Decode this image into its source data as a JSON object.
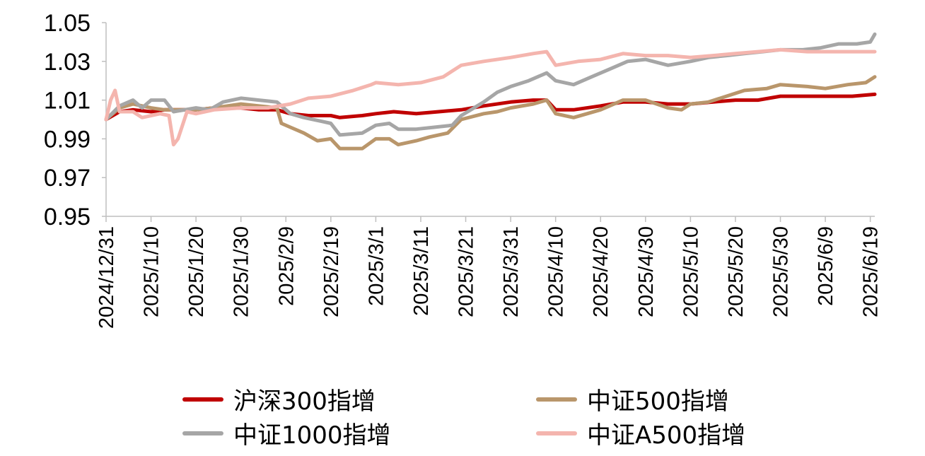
{
  "chart_data": {
    "type": "line",
    "ylim": [
      0.95,
      1.05
    ],
    "yticks": [
      "1.05",
      "1.03",
      "1.01",
      "0.99",
      "0.97",
      "0.95"
    ],
    "ytick_values": [
      1.05,
      1.03,
      1.01,
      0.99,
      0.97,
      0.95
    ],
    "xticks": [
      "2024/12/31",
      "2025/1/10",
      "2025/1/20",
      "2025/1/30",
      "2025/2/9",
      "2025/2/19",
      "2025/3/1",
      "2025/3/11",
      "2025/3/21",
      "2025/3/31",
      "2025/4/10",
      "2025/4/20",
      "2025/4/30",
      "2025/5/10",
      "2025/5/20",
      "2025/5/30",
      "2025/6/9",
      "2025/6/19"
    ],
    "xlim": [
      "2024/12/31",
      "2025/6/20"
    ],
    "grid": false,
    "legend_placement": "bottom",
    "series": [
      {
        "name": "沪深300指增",
        "color": "#C00000",
        "points": [
          [
            "2024/12/31",
            1.0
          ],
          [
            "2025/1/3",
            1.004
          ],
          [
            "2025/1/6",
            1.005
          ],
          [
            "2025/1/10",
            1.004
          ],
          [
            "2025/1/13",
            1.005
          ],
          [
            "2025/1/20",
            1.005
          ],
          [
            "2025/1/24",
            1.006
          ],
          [
            "2025/1/30",
            1.006
          ],
          [
            "2025/2/3",
            1.005
          ],
          [
            "2025/2/7",
            1.005
          ],
          [
            "2025/2/10",
            1.003
          ],
          [
            "2025/2/14",
            1.002
          ],
          [
            "2025/2/19",
            1.002
          ],
          [
            "2025/2/21",
            1.001
          ],
          [
            "2025/2/26",
            1.002
          ],
          [
            "2025/3/1",
            1.003
          ],
          [
            "2025/3/5",
            1.004
          ],
          [
            "2025/3/10",
            1.003
          ],
          [
            "2025/3/15",
            1.004
          ],
          [
            "2025/3/20",
            1.005
          ],
          [
            "2025/3/25",
            1.007
          ],
          [
            "2025/3/31",
            1.009
          ],
          [
            "2025/4/5",
            1.01
          ],
          [
            "2025/4/8",
            1.01
          ],
          [
            "2025/4/10",
            1.005
          ],
          [
            "2025/4/14",
            1.005
          ],
          [
            "2025/4/20",
            1.007
          ],
          [
            "2025/4/25",
            1.009
          ],
          [
            "2025/4/30",
            1.009
          ],
          [
            "2025/5/5",
            1.008
          ],
          [
            "2025/5/10",
            1.008
          ],
          [
            "2025/5/15",
            1.009
          ],
          [
            "2025/5/20",
            1.01
          ],
          [
            "2025/5/25",
            1.01
          ],
          [
            "2025/5/30",
            1.012
          ],
          [
            "2025/6/5",
            1.012
          ],
          [
            "2025/6/10",
            1.012
          ],
          [
            "2025/6/15",
            1.012
          ],
          [
            "2025/6/20",
            1.013
          ]
        ]
      },
      {
        "name": "中证500指增",
        "color": "#B9966B",
        "points": [
          [
            "2024/12/31",
            1.0
          ],
          [
            "2025/1/3",
            1.006
          ],
          [
            "2025/1/6",
            1.008
          ],
          [
            "2025/1/10",
            1.006
          ],
          [
            "2025/1/13",
            1.005
          ],
          [
            "2025/1/20",
            1.005
          ],
          [
            "2025/1/24",
            1.006
          ],
          [
            "2025/1/30",
            1.008
          ],
          [
            "2025/2/3",
            1.007
          ],
          [
            "2025/2/7",
            1.006
          ],
          [
            "2025/2/8",
            0.998
          ],
          [
            "2025/2/10",
            0.996
          ],
          [
            "2025/2/13",
            0.993
          ],
          [
            "2025/2/16",
            0.989
          ],
          [
            "2025/2/19",
            0.99
          ],
          [
            "2025/2/21",
            0.985
          ],
          [
            "2025/2/26",
            0.985
          ],
          [
            "2025/3/1",
            0.99
          ],
          [
            "2025/3/4",
            0.99
          ],
          [
            "2025/3/6",
            0.987
          ],
          [
            "2025/3/10",
            0.989
          ],
          [
            "2025/3/13",
            0.991
          ],
          [
            "2025/3/17",
            0.993
          ],
          [
            "2025/3/20",
            1.0
          ],
          [
            "2025/3/25",
            1.003
          ],
          [
            "2025/3/28",
            1.004
          ],
          [
            "2025/3/31",
            1.006
          ],
          [
            "2025/4/5",
            1.008
          ],
          [
            "2025/4/8",
            1.01
          ],
          [
            "2025/4/10",
            1.003
          ],
          [
            "2025/4/14",
            1.001
          ],
          [
            "2025/4/20",
            1.005
          ],
          [
            "2025/4/25",
            1.01
          ],
          [
            "2025/4/30",
            1.01
          ],
          [
            "2025/5/5",
            1.006
          ],
          [
            "2025/5/8",
            1.005
          ],
          [
            "2025/5/10",
            1.008
          ],
          [
            "2025/5/14",
            1.009
          ],
          [
            "2025/5/18",
            1.012
          ],
          [
            "2025/5/22",
            1.015
          ],
          [
            "2025/5/27",
            1.016
          ],
          [
            "2025/5/30",
            1.018
          ],
          [
            "2025/6/5",
            1.017
          ],
          [
            "2025/6/9",
            1.016
          ],
          [
            "2025/6/14",
            1.018
          ],
          [
            "2025/6/18",
            1.019
          ],
          [
            "2025/6/20",
            1.022
          ]
        ]
      },
      {
        "name": "中证1000指增",
        "color": "#A6A6A6",
        "points": [
          [
            "2024/12/31",
            1.0
          ],
          [
            "2025/1/3",
            1.007
          ],
          [
            "2025/1/6",
            1.01
          ],
          [
            "2025/1/8",
            1.006
          ],
          [
            "2025/1/10",
            1.01
          ],
          [
            "2025/1/13",
            1.01
          ],
          [
            "2025/1/15",
            1.004
          ],
          [
            "2025/1/20",
            1.006
          ],
          [
            "2025/1/23",
            1.005
          ],
          [
            "2025/1/26",
            1.009
          ],
          [
            "2025/1/30",
            1.011
          ],
          [
            "2025/2/3",
            1.01
          ],
          [
            "2025/2/7",
            1.009
          ],
          [
            "2025/2/10",
            1.003
          ],
          [
            "2025/2/13",
            1.001
          ],
          [
            "2025/2/17",
            0.999
          ],
          [
            "2025/2/19",
            0.998
          ],
          [
            "2025/2/21",
            0.992
          ],
          [
            "2025/2/26",
            0.993
          ],
          [
            "2025/3/1",
            0.997
          ],
          [
            "2025/3/4",
            0.998
          ],
          [
            "2025/3/6",
            0.995
          ],
          [
            "2025/3/10",
            0.995
          ],
          [
            "2025/3/14",
            0.996
          ],
          [
            "2025/3/18",
            0.997
          ],
          [
            "2025/3/20",
            1.002
          ],
          [
            "2025/3/25",
            1.009
          ],
          [
            "2025/3/28",
            1.014
          ],
          [
            "2025/3/31",
            1.017
          ],
          [
            "2025/4/4",
            1.02
          ],
          [
            "2025/4/8",
            1.024
          ],
          [
            "2025/4/10",
            1.02
          ],
          [
            "2025/4/14",
            1.018
          ],
          [
            "2025/4/18",
            1.022
          ],
          [
            "2025/4/22",
            1.026
          ],
          [
            "2025/4/26",
            1.03
          ],
          [
            "2025/4/30",
            1.031
          ],
          [
            "2025/5/5",
            1.028
          ],
          [
            "2025/5/10",
            1.03
          ],
          [
            "2025/5/14",
            1.032
          ],
          [
            "2025/5/18",
            1.033
          ],
          [
            "2025/5/22",
            1.034
          ],
          [
            "2025/5/26",
            1.035
          ],
          [
            "2025/5/30",
            1.036
          ],
          [
            "2025/6/4",
            1.036
          ],
          [
            "2025/6/8",
            1.037
          ],
          [
            "2025/6/12",
            1.039
          ],
          [
            "2025/6/16",
            1.039
          ],
          [
            "2025/6/19",
            1.04
          ],
          [
            "2025/6/20",
            1.044
          ]
        ]
      },
      {
        "name": "中证A500指增",
        "color": "#F4B5AE",
        "points": [
          [
            "2024/12/31",
            1.0
          ],
          [
            "2025/1/1",
            1.01
          ],
          [
            "2025/1/2",
            1.015
          ],
          [
            "2025/1/3",
            1.004
          ],
          [
            "2025/1/6",
            1.004
          ],
          [
            "2025/1/8",
            1.001
          ],
          [
            "2025/1/12",
            1.003
          ],
          [
            "2025/1/14",
            1.002
          ],
          [
            "2025/1/15",
            0.987
          ],
          [
            "2025/1/16",
            0.99
          ],
          [
            "2025/1/18",
            1.004
          ],
          [
            "2025/1/20",
            1.003
          ],
          [
            "2025/1/24",
            1.005
          ],
          [
            "2025/1/30",
            1.006
          ],
          [
            "2025/2/5",
            1.006
          ],
          [
            "2025/2/10",
            1.008
          ],
          [
            "2025/2/14",
            1.011
          ],
          [
            "2025/2/19",
            1.012
          ],
          [
            "2025/2/24",
            1.015
          ],
          [
            "2025/2/28",
            1.018
          ],
          [
            "2025/3/1",
            1.019
          ],
          [
            "2025/3/6",
            1.018
          ],
          [
            "2025/3/11",
            1.019
          ],
          [
            "2025/3/16",
            1.022
          ],
          [
            "2025/3/20",
            1.028
          ],
          [
            "2025/3/25",
            1.03
          ],
          [
            "2025/3/31",
            1.032
          ],
          [
            "2025/4/5",
            1.034
          ],
          [
            "2025/4/8",
            1.035
          ],
          [
            "2025/4/10",
            1.028
          ],
          [
            "2025/4/15",
            1.03
          ],
          [
            "2025/4/20",
            1.031
          ],
          [
            "2025/4/25",
            1.034
          ],
          [
            "2025/4/30",
            1.033
          ],
          [
            "2025/5/5",
            1.033
          ],
          [
            "2025/5/10",
            1.032
          ],
          [
            "2025/5/15",
            1.033
          ],
          [
            "2025/5/20",
            1.034
          ],
          [
            "2025/5/25",
            1.035
          ],
          [
            "2025/5/30",
            1.036
          ],
          [
            "2025/6/5",
            1.035
          ],
          [
            "2025/6/10",
            1.035
          ],
          [
            "2025/6/15",
            1.035
          ],
          [
            "2025/6/20",
            1.035
          ]
        ]
      }
    ]
  }
}
